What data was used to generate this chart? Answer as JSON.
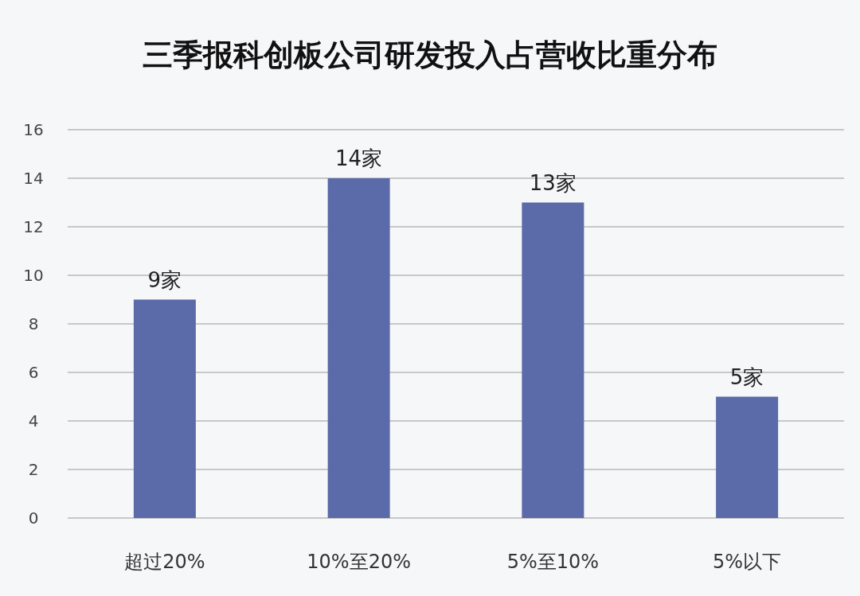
{
  "chart_data": {
    "type": "bar",
    "title": "三季报科创板公司研发投入占营收比重分布",
    "categories": [
      "超过20%",
      "10%至20%",
      "5%至10%",
      "5%以下"
    ],
    "values": [
      9,
      14,
      13,
      5
    ],
    "value_labels": [
      "9家",
      "14家",
      "13家",
      "5家"
    ],
    "color": "#5b6aa8",
    "ylim": [
      0,
      16
    ],
    "yticks": [
      0,
      2,
      4,
      6,
      8,
      10,
      12,
      14,
      16
    ],
    "grid": "y"
  }
}
